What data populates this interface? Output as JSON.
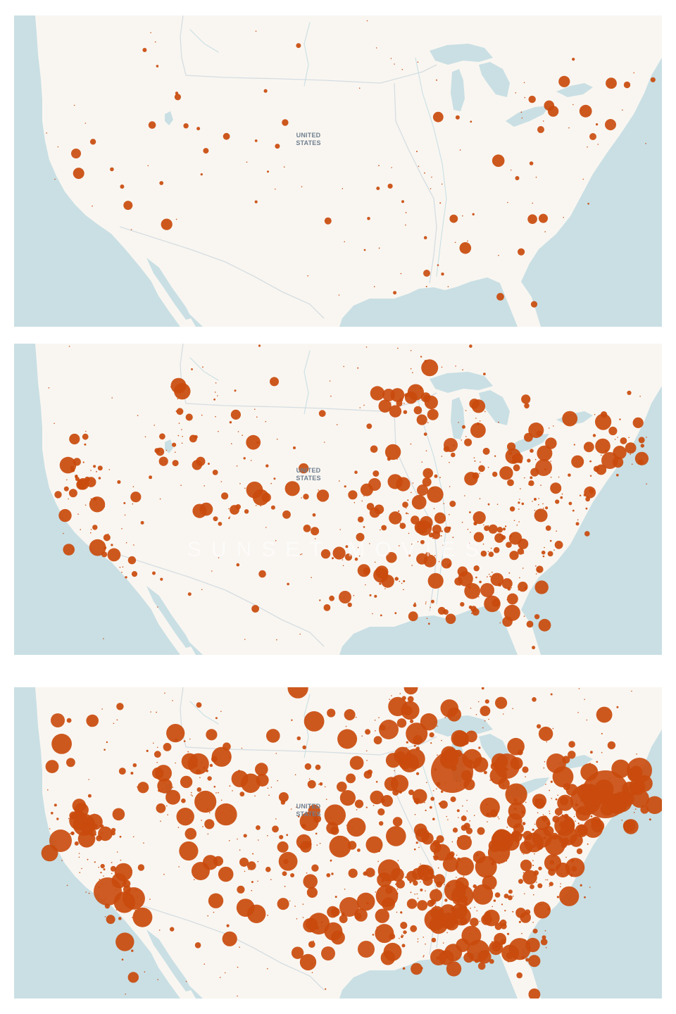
{
  "map": {
    "country_label_line1": "UNITED",
    "country_label_line2": "STATES",
    "watermark_text": "SUNSET MOVIES",
    "colors": {
      "water": "#c9dfe4",
      "land": "#f9f6f1",
      "border": "#d5dde2",
      "dot": "#c94a0c"
    },
    "dot_icon": "circle-marker-icon"
  },
  "panels": [
    {
      "label": "map-panel-1"
    },
    {
      "label": "map-panel-2"
    },
    {
      "label": "map-panel-3"
    }
  ]
}
